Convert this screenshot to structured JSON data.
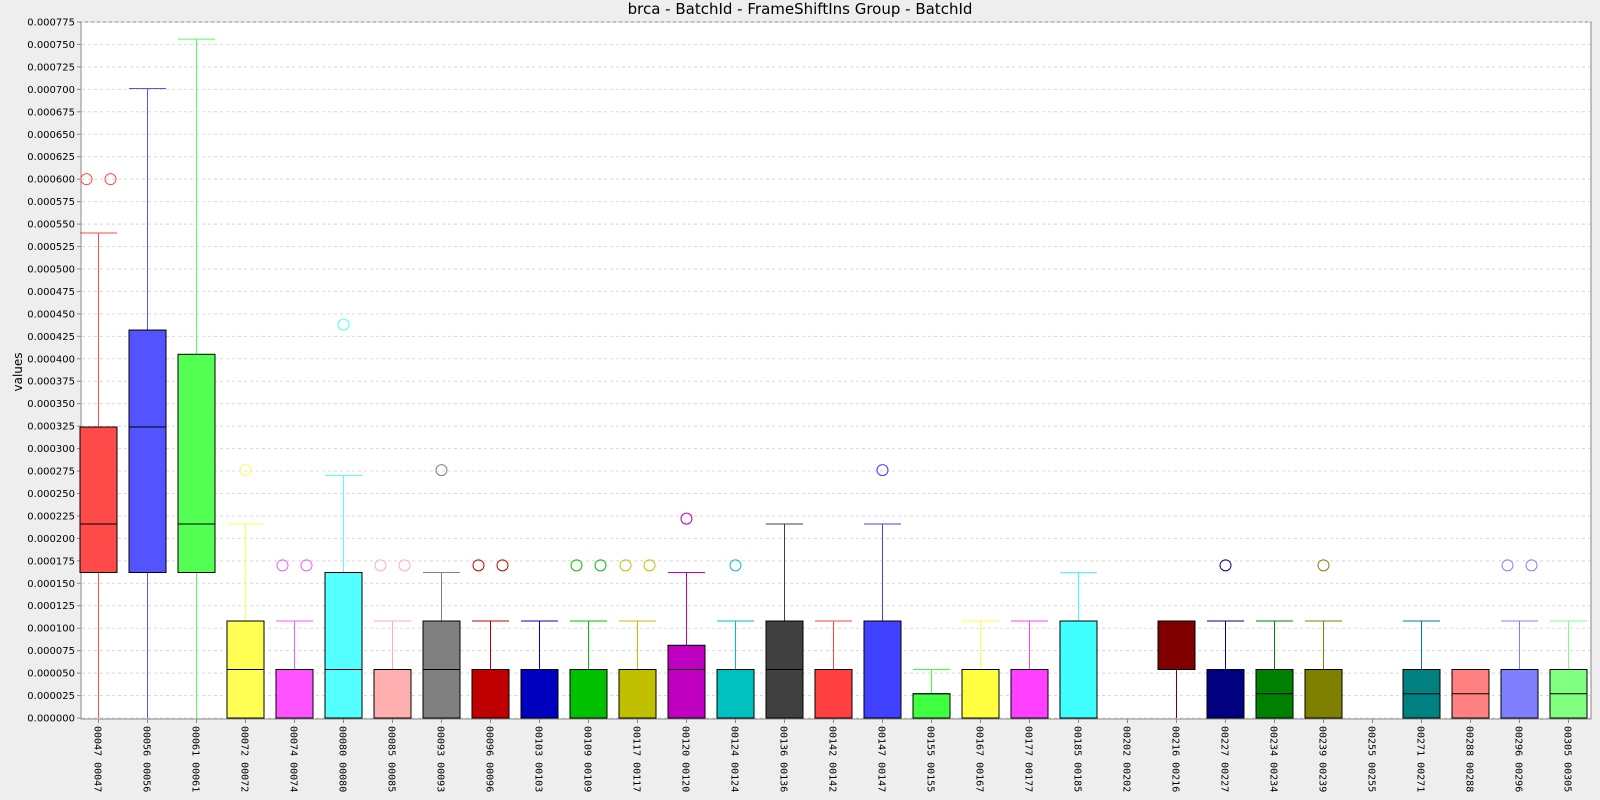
{
  "chart_data": {
    "type": "box",
    "title": "brca - BatchId - FrameShiftIns Group - BatchId",
    "ylabel": "values",
    "xlabel": "",
    "ylim": [
      0,
      0.000775
    ],
    "yticks": [
      "0.000000",
      "0.000025",
      "0.000050",
      "0.000075",
      "0.000100",
      "0.000125",
      "0.000150",
      "0.000175",
      "0.000200",
      "0.000225",
      "0.000250",
      "0.000275",
      "0.000300",
      "0.000325",
      "0.000350",
      "0.000375",
      "0.000400",
      "0.000425",
      "0.000450",
      "0.000475",
      "0.000500",
      "0.000525",
      "0.000550",
      "0.000575",
      "0.000600",
      "0.000625",
      "0.000650",
      "0.000675",
      "0.000700",
      "0.000725",
      "0.000750",
      "0.000775"
    ],
    "grid": true,
    "categories": [
      {
        "label": "00047  00047",
        "color": "#ff4a4a",
        "min": 0,
        "q1": 0.000162,
        "median": 0.000216,
        "q3": 0.000324,
        "max": 0.00054,
        "outliers": [
          0.0006,
          0.0006
        ]
      },
      {
        "label": "00056  00056",
        "color": "#5353ff",
        "min": 0,
        "q1": 0.000162,
        "median": 0.000324,
        "q3": 0.000432,
        "max": 0.000701,
        "outliers": []
      },
      {
        "label": "00061  00061",
        "color": "#53ff53",
        "min": 0,
        "q1": 0.000162,
        "median": 0.000216,
        "q3": 0.000405,
        "max": 0.000756,
        "outliers": []
      },
      {
        "label": "00072  00072",
        "color": "#ffff53",
        "min": 0,
        "q1": 0,
        "median": 5.4e-05,
        "q3": 0.000108,
        "max": 0.000216,
        "outliers": [
          0.000276
        ]
      },
      {
        "label": "00074  00074",
        "color": "#ff53ff",
        "min": 0,
        "q1": 0,
        "median": 5.4e-05,
        "q3": 5.4e-05,
        "max": 0.000108,
        "outliers": [
          0.00017,
          0.00017
        ]
      },
      {
        "label": "00080  00080",
        "color": "#53ffff",
        "min": 0,
        "q1": 0,
        "median": 5.4e-05,
        "q3": 0.000162,
        "max": 0.00027,
        "outliers": [
          0.000438
        ]
      },
      {
        "label": "00085  00085",
        "color": "#ffafaf",
        "min": 0,
        "q1": 0,
        "median": 5.4e-05,
        "q3": 5.4e-05,
        "max": 0.000108,
        "outliers": [
          0.00017,
          0.00017
        ]
      },
      {
        "label": "00093  00093",
        "color": "#808080",
        "min": 0,
        "q1": 0,
        "median": 5.4e-05,
        "q3": 0.000108,
        "max": 0.000162,
        "outliers": [
          0.000276
        ]
      },
      {
        "label": "00096  00096",
        "color": "#c00000",
        "min": 0,
        "q1": 0,
        "median": 5.4e-05,
        "q3": 5.4e-05,
        "max": 0.000108,
        "outliers": [
          0.00017,
          0.00017
        ]
      },
      {
        "label": "00103  00103",
        "color": "#0000c0",
        "min": 0,
        "q1": 0,
        "median": 5.4e-05,
        "q3": 5.4e-05,
        "max": 0.000108,
        "outliers": []
      },
      {
        "label": "00109  00109",
        "color": "#00c000",
        "min": 0,
        "q1": 0,
        "median": 5.4e-05,
        "q3": 5.4e-05,
        "max": 0.000108,
        "outliers": [
          0.00017,
          0.00017
        ]
      },
      {
        "label": "00117  00117",
        "color": "#c0c000",
        "min": 0,
        "q1": 0,
        "median": 5.4e-05,
        "q3": 5.4e-05,
        "max": 0.000108,
        "outliers": [
          0.00017,
          0.00017
        ]
      },
      {
        "label": "00120  00120",
        "color": "#c000c0",
        "min": 0,
        "q1": 0,
        "median": 5.4e-05,
        "q3": 8.1e-05,
        "max": 0.000162,
        "outliers": [
          0.000222
        ]
      },
      {
        "label": "00124  00124",
        "color": "#00c0c0",
        "min": 0,
        "q1": 0,
        "median": 5.4e-05,
        "q3": 5.4e-05,
        "max": 0.000108,
        "outliers": [
          0.00017
        ]
      },
      {
        "label": "00136  00136",
        "color": "#404040",
        "min": 0,
        "q1": 0,
        "median": 5.4e-05,
        "q3": 0.000108,
        "max": 0.000216,
        "outliers": []
      },
      {
        "label": "00142  00142",
        "color": "#ff4040",
        "min": 0,
        "q1": 0,
        "median": 5.4e-05,
        "q3": 5.4e-05,
        "max": 0.000108,
        "outliers": []
      },
      {
        "label": "00147  00147",
        "color": "#4040ff",
        "min": 0,
        "q1": 0,
        "median": 0.000108,
        "q3": 0.000108,
        "max": 0.000216,
        "outliers": [
          0.000276
        ]
      },
      {
        "label": "00155  00155",
        "color": "#40ff40",
        "min": 0,
        "q1": 0,
        "median": 2.7e-05,
        "q3": 2.7e-05,
        "max": 5.4e-05,
        "outliers": []
      },
      {
        "label": "00167  00167",
        "color": "#ffff40",
        "min": 0,
        "q1": 0,
        "median": 5.4e-05,
        "q3": 5.4e-05,
        "max": 0.000108,
        "outliers": []
      },
      {
        "label": "00177  00177",
        "color": "#ff40ff",
        "min": 0,
        "q1": 0,
        "median": 5.4e-05,
        "q3": 5.4e-05,
        "max": 0.000108,
        "outliers": []
      },
      {
        "label": "00185  00185",
        "color": "#40ffff",
        "min": 0,
        "q1": 0,
        "median": 0.000108,
        "q3": 0.000108,
        "max": 0.000162,
        "outliers": []
      },
      {
        "label": "00202  00202",
        "color": "#ff0000",
        "min": 0,
        "q1": 0,
        "median": 0,
        "q3": 0,
        "max": 0,
        "outliers": []
      },
      {
        "label": "00216  00216",
        "color": "#800000",
        "min": 0,
        "q1": 5.4e-05,
        "median": 0.000108,
        "q3": 0.000108,
        "max": 0.000108,
        "outliers": []
      },
      {
        "label": "00227  00227",
        "color": "#000080",
        "min": 0,
        "q1": 0,
        "median": 5.4e-05,
        "q3": 5.4e-05,
        "max": 0.000108,
        "outliers": [
          0.00017
        ]
      },
      {
        "label": "00234  00234",
        "color": "#008000",
        "min": 0,
        "q1": 0,
        "median": 2.7e-05,
        "q3": 5.4e-05,
        "max": 0.000108,
        "outliers": []
      },
      {
        "label": "00239  00239",
        "color": "#808000",
        "min": 0,
        "q1": 0,
        "median": 5.4e-05,
        "q3": 5.4e-05,
        "max": 0.000108,
        "outliers": [
          0.00017
        ]
      },
      {
        "label": "00255  00255",
        "color": "#800080",
        "min": 0,
        "q1": 0,
        "median": 0,
        "q3": 0,
        "max": 0,
        "outliers": []
      },
      {
        "label": "00271  00271",
        "color": "#008080",
        "min": 0,
        "q1": 0,
        "median": 2.7e-05,
        "q3": 5.4e-05,
        "max": 0.000108,
        "outliers": []
      },
      {
        "label": "00288  00288",
        "color": "#ff8080",
        "min": 0,
        "q1": 0,
        "median": 2.7e-05,
        "q3": 5.4e-05,
        "max": 5.4e-05,
        "outliers": []
      },
      {
        "label": "00296  00296",
        "color": "#8080ff",
        "min": 0,
        "q1": 0,
        "median": 5.4e-05,
        "q3": 5.4e-05,
        "max": 0.000108,
        "outliers": [
          0.00017,
          0.00017
        ]
      },
      {
        "label": "00305  00305",
        "color": "#80ff80",
        "min": 0,
        "q1": 0,
        "median": 2.7e-05,
        "q3": 5.4e-05,
        "max": 0.000108,
        "outliers": []
      }
    ]
  }
}
